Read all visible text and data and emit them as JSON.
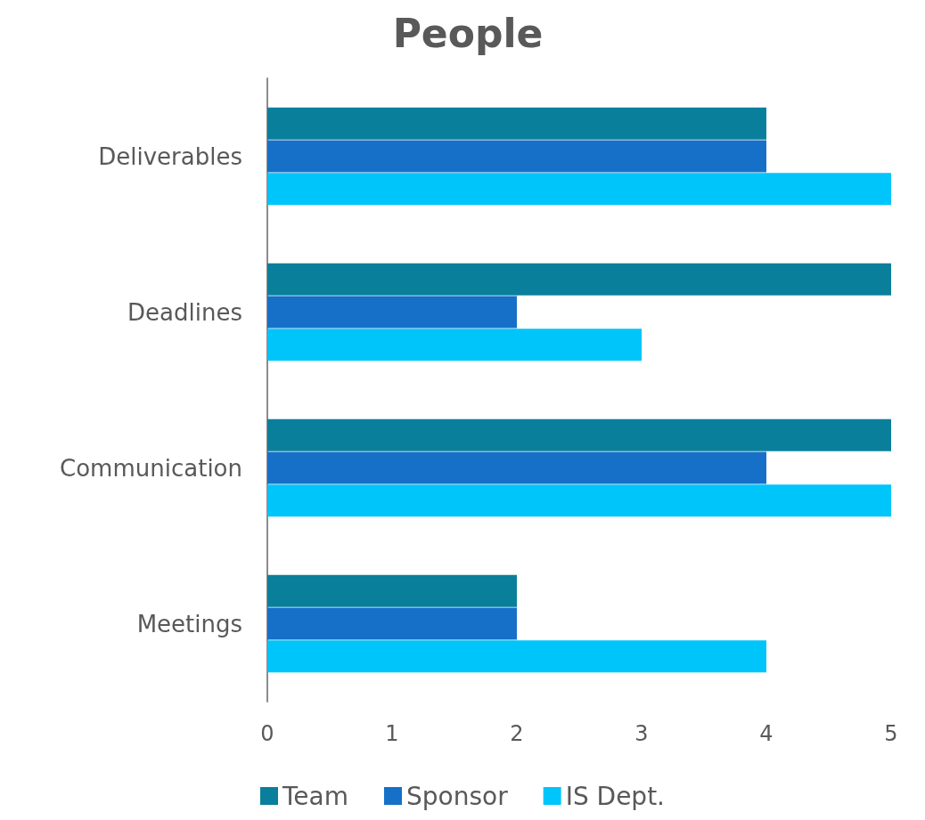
{
  "chart_data": {
    "type": "bar",
    "orientation": "horizontal",
    "title": "People",
    "categories": [
      "Deliverables",
      "Deadlines",
      "Communication",
      "Meetings"
    ],
    "series": [
      {
        "name": "Team",
        "color": "#0a7f9b",
        "values": [
          4,
          5,
          5,
          2
        ]
      },
      {
        "name": "Sponsor",
        "color": "#1670c8",
        "values": [
          4,
          2,
          4,
          2
        ]
      },
      {
        "name": "IS Dept.",
        "color": "#00c5fa",
        "values": [
          5,
          3,
          5,
          4
        ]
      }
    ],
    "xlim": [
      0,
      5
    ],
    "xticks": [
      0,
      1,
      2,
      3,
      4,
      5
    ],
    "grid": false,
    "legend": "bottom"
  }
}
